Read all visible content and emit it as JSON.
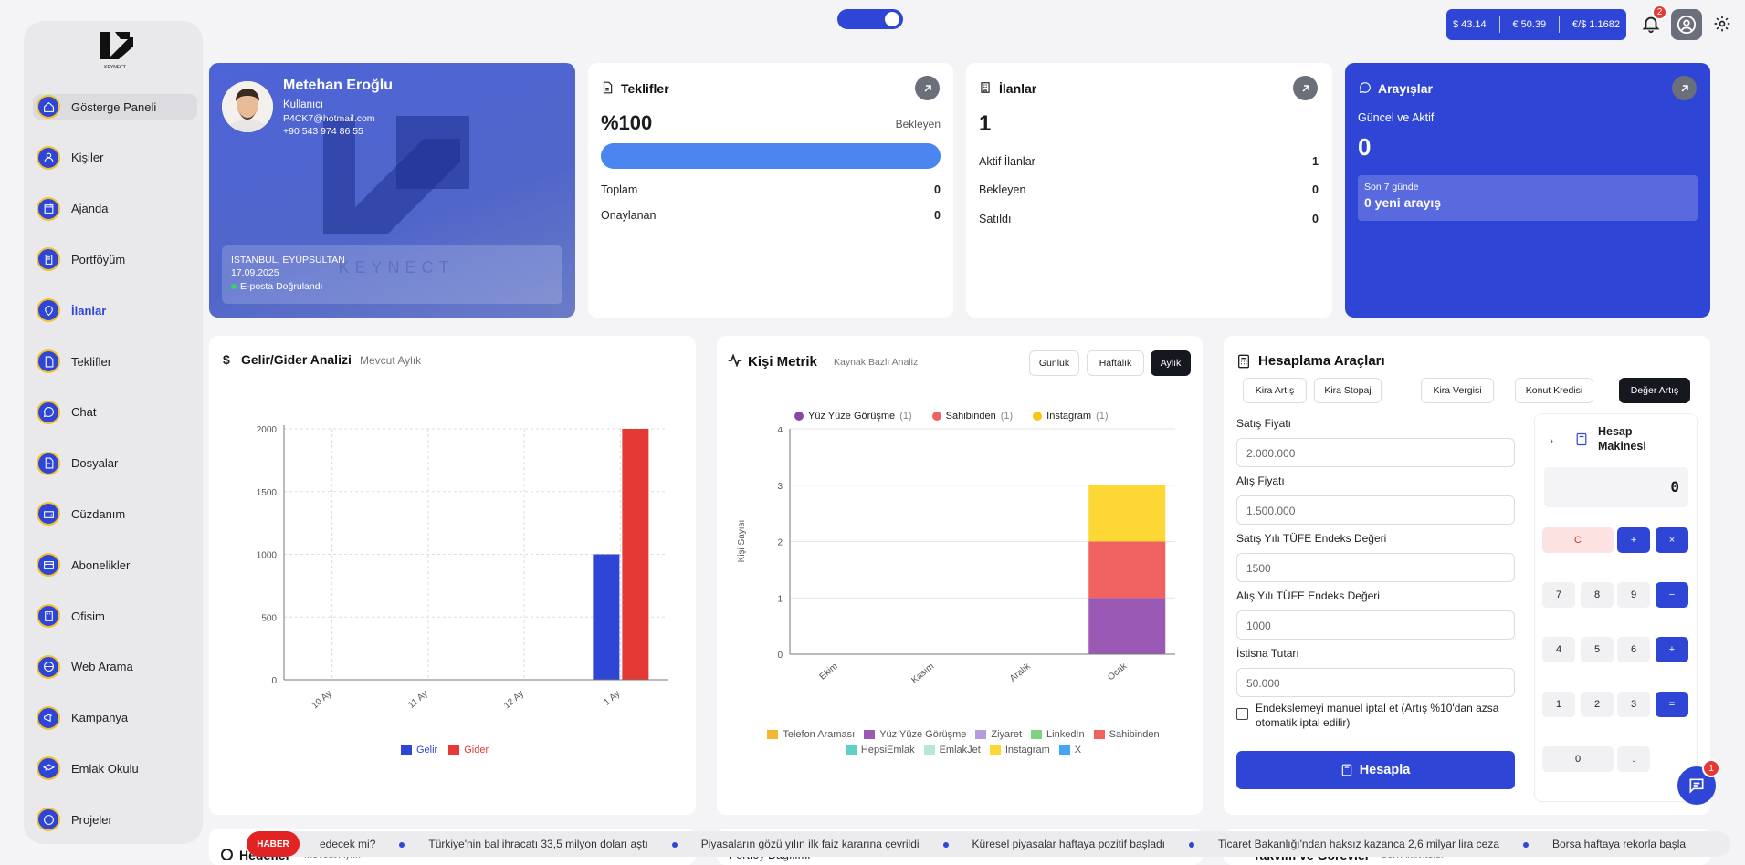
{
  "sidebar": {
    "items": [
      {
        "label": "Gösterge Paneli"
      },
      {
        "label": "Kişiler"
      },
      {
        "label": "Ajanda"
      },
      {
        "label": "Portföyüm"
      },
      {
        "label": "İlanlar"
      },
      {
        "label": "Teklifler"
      },
      {
        "label": "Chat"
      },
      {
        "label": "Dosyalar"
      },
      {
        "label": "Cüzdanım"
      },
      {
        "label": "Abonelikler"
      },
      {
        "label": "Ofisim"
      },
      {
        "label": "Web Arama"
      },
      {
        "label": "Kampanya"
      },
      {
        "label": "Emlak Okulu"
      },
      {
        "label": "Projeler"
      }
    ],
    "logo_text": "KEYNECT"
  },
  "topbar": {
    "usd": "$ 43.14",
    "eur": "€ 50.39",
    "eurusd": "€/$ 1.1682",
    "notif_count": "2"
  },
  "profile": {
    "name": "Metehan Eroğlu",
    "role": "Kullanıcı",
    "email": "P4CK7@hotmail.com",
    "phone": "+90 543 974 86 55",
    "location": "İSTANBUL, EYÜPSULTAN",
    "date": "17.09.2025",
    "verified": "E-posta Doğrulandı",
    "watermark": "KEYNECT"
  },
  "teklifler": {
    "title": "Teklifler",
    "percent": "%100",
    "status": "Bekleyen",
    "progress": 1.0,
    "rows": [
      {
        "label": "Toplam",
        "value": "0"
      },
      {
        "label": "Onaylanan",
        "value": "0"
      }
    ]
  },
  "ilanlar": {
    "title": "İlanlar",
    "count": "1",
    "rows": [
      {
        "label": "Aktif İlanlar",
        "value": "1"
      },
      {
        "label": "Bekleyen",
        "value": "0"
      },
      {
        "label": "Satıldı",
        "value": "0"
      }
    ]
  },
  "arayislar": {
    "title": "Arayışlar",
    "subtitle": "Güncel ve Aktif",
    "count": "0",
    "box_label": "Son 7 günde",
    "box_value": "0 yeni arayış"
  },
  "gelir": {
    "title": "Gelir/Gider Analizi",
    "period": "Mevcut Aylık"
  },
  "kisi": {
    "title": "Kişi Metrik",
    "subtitle": "Kaynak Bazlı Analiz",
    "tabs": [
      "Günlük",
      "Haftalık",
      "Aylık"
    ],
    "top_legend": [
      {
        "label": "Yüz Yüze Görüşme",
        "count": "(1)",
        "color": "#8e44ad"
      },
      {
        "label": "Sahibinden",
        "count": "(1)",
        "color": "#f06262"
      },
      {
        "label": "Instagram",
        "count": "(1)",
        "color": "#f5c518"
      }
    ],
    "bottom_legend": [
      {
        "label": "Telefon Araması",
        "color": "#f5b731"
      },
      {
        "label": "Yüz Yüze Görüşme",
        "color": "#9b59b6"
      },
      {
        "label": "Ziyaret",
        "color": "#b39ddb"
      },
      {
        "label": "LinkedIn",
        "color": "#7ed37e"
      },
      {
        "label": "Sahibinden",
        "color": "#f06262"
      },
      {
        "label": "HepsiEmlak",
        "color": "#5fd0c4"
      },
      {
        "label": "EmlakJet",
        "color": "#b5e8d5"
      },
      {
        "label": "Instagram",
        "color": "#fdd835"
      },
      {
        "label": "X",
        "color": "#42a5f5"
      }
    ]
  },
  "hesap": {
    "title": "Hesaplama Araçları",
    "tabs": [
      "Kira Artış",
      "Kira Stopaj",
      "Kira Vergisi",
      "Konut Kredisi",
      "Değer Artış"
    ],
    "fields": [
      {
        "label": "Satış Fiyatı",
        "value": "2.000.000"
      },
      {
        "label": "Alış Fiyatı",
        "value": "1.500.000"
      },
      {
        "label": "Satış Yılı TÜFE Endeks Değeri",
        "value": "1500"
      },
      {
        "label": "Alış Yılı TÜFE Endeks Değeri",
        "value": "1000"
      },
      {
        "label": "İstisna Tutarı",
        "value": "50.000"
      }
    ],
    "checkbox": "Endekslemeyi manuel iptal et (Artış %10'dan azsa otomatik iptal edilir)",
    "submit": "Hesapla"
  },
  "calculator": {
    "title": "Hesap Makinesi",
    "display": "0",
    "keys": [
      "C",
      "+",
      "×",
      "7",
      "8",
      "9",
      "−",
      "4",
      "5",
      "6",
      "+",
      "1",
      "2",
      "3",
      "=",
      "0",
      "."
    ]
  },
  "ticker": {
    "badge": "HABER",
    "items": [
      "edecek mi?",
      "Türkiye'nin bal ihracatı 33,5 milyon doları aştı",
      "Piyasaların gözü yılın ilk faiz kararına çevrildi",
      "Küresel piyasalar haftaya pozitif başladı",
      "Ticaret Bakanlığı'ndan haksız kazanca 2,6 milyar lira ceza",
      "Borsa haftaya rekorla başla"
    ]
  },
  "bottom_cards": {
    "hedefler": "Hedefler",
    "hedefler_sub": "Mevcut Aylık",
    "portfoy": "Portföy Dağılımı",
    "takvim": "Takvim ve Görevler",
    "takvim_sub": "Son Aktiviteler"
  },
  "chat_badge": "1",
  "chart_data": [
    {
      "type": "bar",
      "title": "",
      "categories": [
        "10 Ay",
        "11 Ay",
        "12 Ay",
        "1 Ay"
      ],
      "series": [
        {
          "name": "Gelir",
          "color": "#2f45d6",
          "values": [
            0,
            0,
            0,
            1000
          ]
        },
        {
          "name": "Gider",
          "color": "#e53935",
          "values": [
            0,
            0,
            0,
            2000
          ]
        }
      ],
      "ylim": [
        0,
        2000
      ],
      "yticks": [
        0,
        500,
        1000,
        1500,
        2000
      ],
      "grid": true,
      "legend": "bottom"
    },
    {
      "type": "bar",
      "stacked": true,
      "title": "",
      "categories": [
        "Ekim",
        "Kasım",
        "Aralık",
        "Ocak"
      ],
      "ylabel": "Kişi Sayısı",
      "series": [
        {
          "name": "Yüz Yüze Görüşme",
          "color": "#9b59b6",
          "values": [
            0,
            0,
            0,
            1
          ]
        },
        {
          "name": "Sahibinden",
          "color": "#f06262",
          "values": [
            0,
            0,
            0,
            1
          ]
        },
        {
          "name": "Instagram",
          "color": "#fdd835",
          "values": [
            0,
            0,
            0,
            1
          ]
        }
      ],
      "ylim": [
        0,
        4
      ],
      "yticks": [
        0,
        1,
        2,
        3,
        4
      ],
      "grid": true,
      "legend": "bottom"
    }
  ]
}
